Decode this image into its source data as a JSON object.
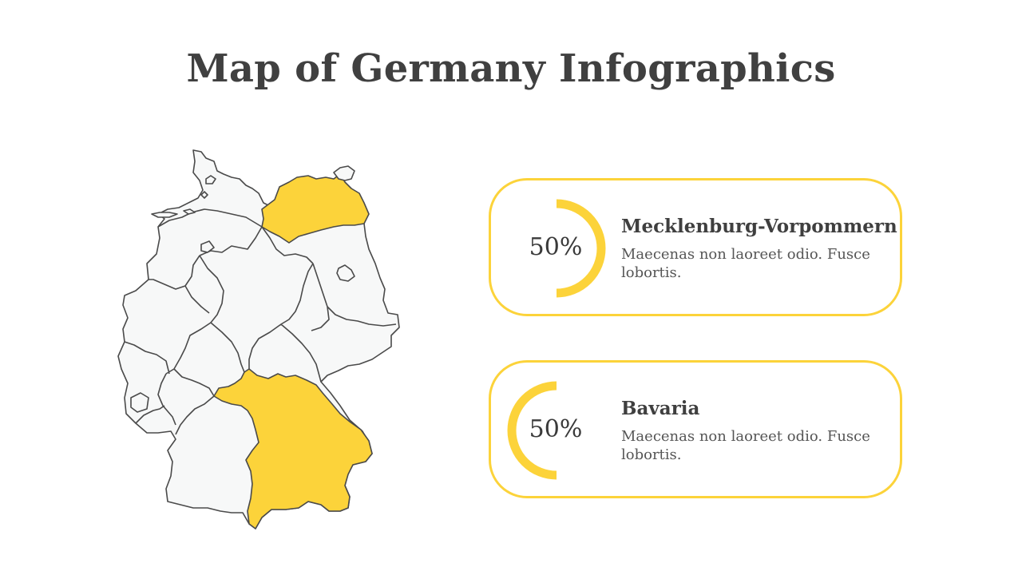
{
  "page": {
    "title": "Map of Germany Infographics"
  },
  "colors": {
    "accent": "#fcd33a",
    "land": "#f7f8f8",
    "outline": "#4a4a4a",
    "text": "#404040"
  },
  "map": {
    "name": "germany-map",
    "highlighted_regions": [
      "Mecklenburg-Vorpommern",
      "Bavaria"
    ]
  },
  "cards": [
    {
      "percent_label": "50%",
      "percent_value": 50,
      "title": "Mecklenburg-Vorpommern",
      "description": "Maecenas non laoreet odio. Fusce lobortis."
    },
    {
      "percent_label": "50%",
      "percent_value": 50,
      "title": "Bavaria",
      "description": "Maecenas non laoreet odio. Fusce lobortis."
    }
  ]
}
